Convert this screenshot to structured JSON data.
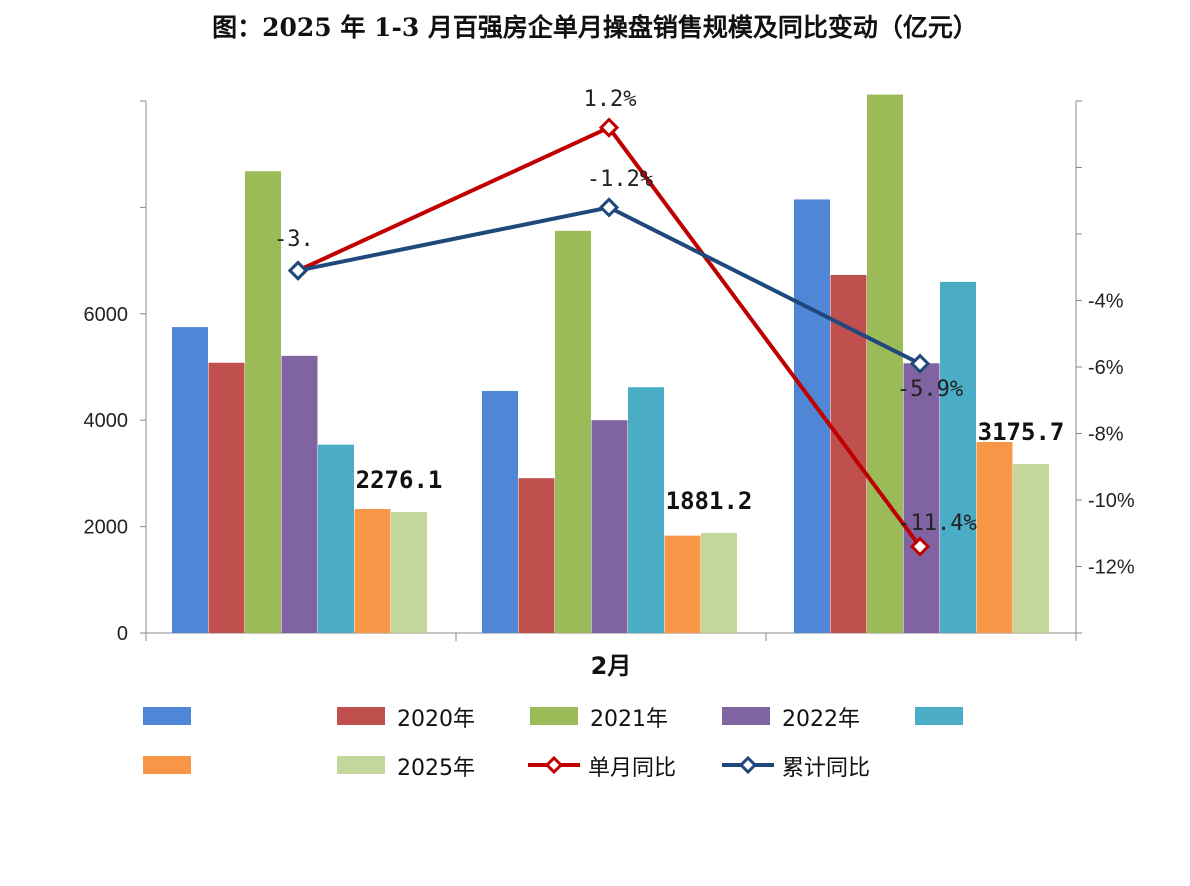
{
  "title": "图：2025 年 1-3 月百强房企单月操盘销售规模及同比变动（亿元）",
  "chart_data": {
    "type": "bar",
    "x_axis_label": "2月",
    "categories": [
      "",
      "",
      ""
    ],
    "ylim_left": [
      0,
      10000
    ],
    "y_left_ticks": [
      "0",
      "2000",
      "4000",
      "6000"
    ],
    "ylim_right": [
      -14,
      2
    ],
    "y_right_ticks": [
      "-4%",
      "-6%",
      "-8%",
      "-10%",
      "-12%"
    ],
    "bar_series": [
      {
        "name": "",
        "color": "#4f86d6",
        "values": [
          5750,
          4550,
          8150
        ]
      },
      {
        "name": "2020年",
        "color": "#c0504d",
        "values": [
          5080,
          2910,
          6730
        ]
      },
      {
        "name": "2021年",
        "color": "#9bbb59",
        "values": [
          8680,
          7560,
          10120
        ]
      },
      {
        "name": "2022年",
        "color": "#8064a2",
        "values": [
          5210,
          4000,
          5070
        ]
      },
      {
        "name": "",
        "color": "#4bacc6",
        "values": [
          3540,
          4620,
          6600
        ]
      },
      {
        "name": "",
        "color": "#f79646",
        "values": [
          2330,
          1830,
          3590
        ]
      },
      {
        "name": "2025年",
        "color": "#c3d69b",
        "values": [
          2276.1,
          1881.2,
          3175.7
        ]
      }
    ],
    "bar_labels": [
      "2276.1",
      "1881.2",
      "3175.7"
    ],
    "line_series": [
      {
        "name": "单月同比",
        "color": "#c00000",
        "values": [
          -3.1,
          1.2,
          -11.4
        ],
        "labels": [
          "",
          "1.2%",
          "-11.4%"
        ]
      },
      {
        "name": "累计同比",
        "color": "#1f497d",
        "values": [
          -3.1,
          -1.2,
          -5.9
        ],
        "labels": [
          "-3.",
          "-1.2%",
          "-5.9%"
        ]
      }
    ],
    "grid": false
  },
  "legend": [
    {
      "label": "",
      "color": "#4f86d6"
    },
    {
      "label": "2020年",
      "color": "#c0504d"
    },
    {
      "label": "2021年",
      "color": "#9bbb59"
    },
    {
      "label": "2022年",
      "color": "#8064a2"
    },
    {
      "label": "",
      "color": "#4bacc6"
    },
    {
      "label": "",
      "color": "#f79646"
    },
    {
      "label": "2025年",
      "color": "#c3d69b"
    },
    {
      "label": "单月同比",
      "color": "#c00000"
    },
    {
      "label": "累计同比",
      "color": "#1f497d"
    }
  ]
}
